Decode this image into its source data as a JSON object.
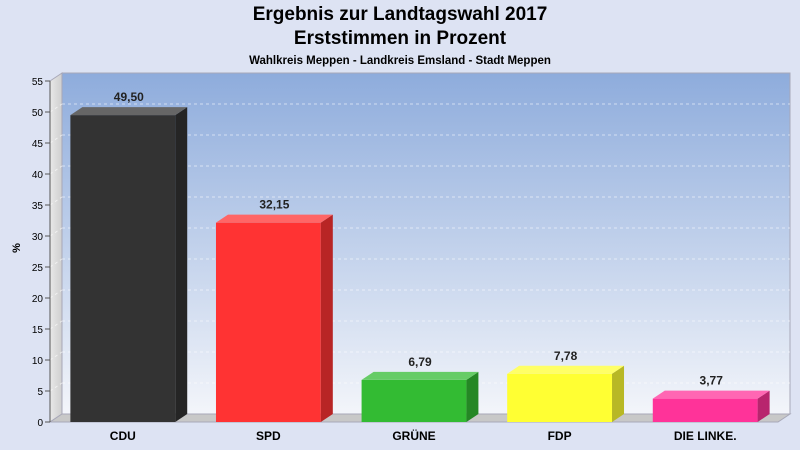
{
  "chart_data": {
    "type": "bar",
    "title": "Ergebnis zur Landtagswahl 2017",
    "subtitle": "Erststimmen in Prozent",
    "subsubtitle": "Wahlkreis Meppen - Landkreis Emsland - Stadt Meppen",
    "ylabel": "%",
    "xlabel": "",
    "ylim": [
      0,
      55
    ],
    "yticks": [
      "0",
      "5",
      "10",
      "15",
      "20",
      "25",
      "30",
      "35",
      "40",
      "45",
      "50",
      "55"
    ],
    "categories": [
      "CDU",
      "SPD",
      "GRÜNE",
      "FDP",
      "DIE LINKE."
    ],
    "values": [
      49.5,
      32.15,
      6.79,
      7.78,
      3.77
    ],
    "value_labels": [
      "49,50",
      "32,15",
      "6,79",
      "7,78",
      "3,77"
    ],
    "colors": [
      "#333333",
      "#ff3333",
      "#33bb33",
      "#ffff33",
      "#ff3399"
    ],
    "grid": true,
    "legend": "none"
  }
}
